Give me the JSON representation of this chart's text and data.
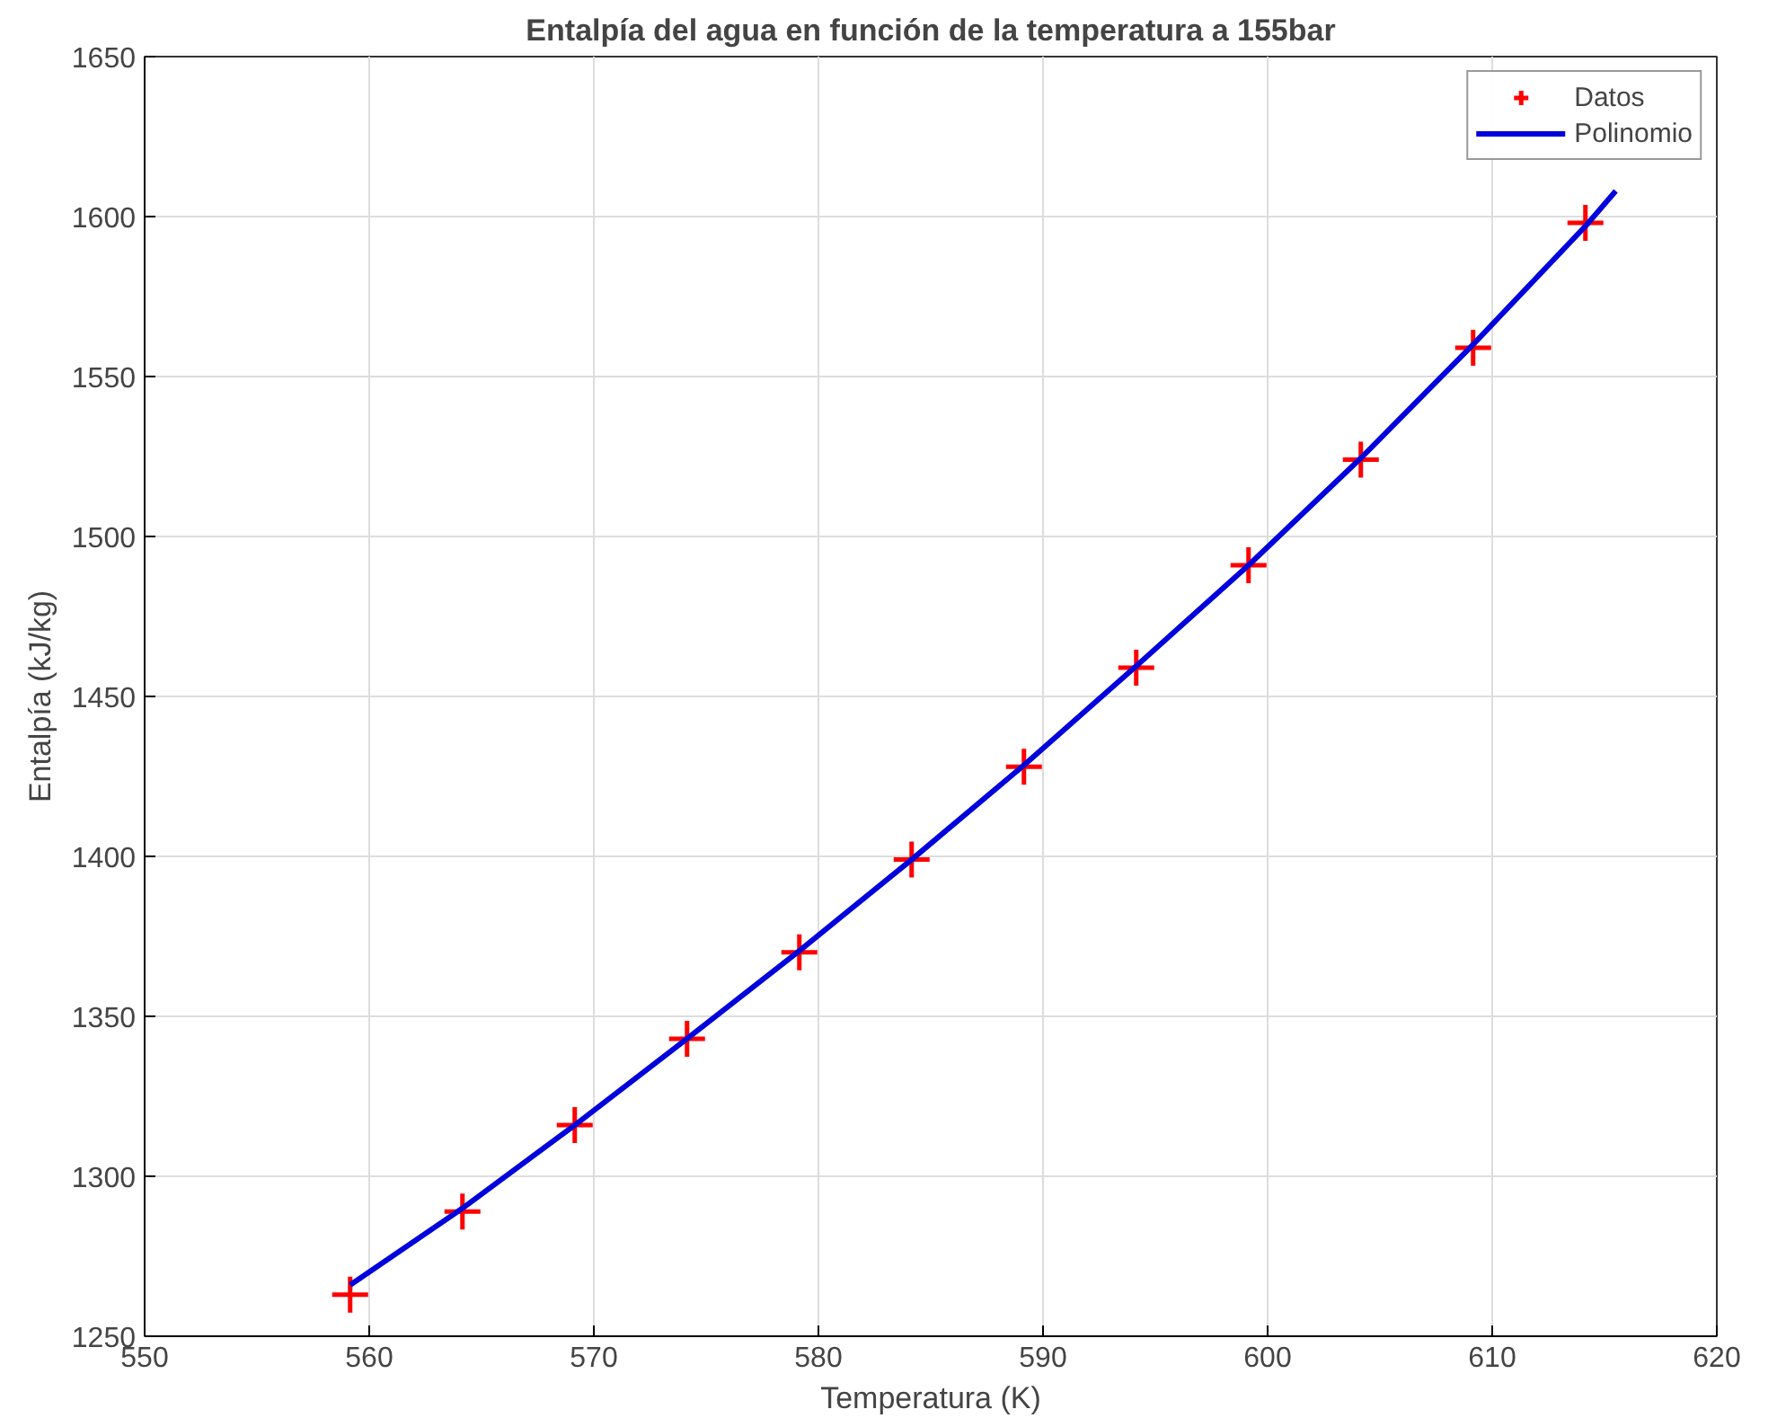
{
  "chart_data": {
    "type": "scatter",
    "title": "Entalpía del agua en función de la temperatura a 155bar",
    "xlabel": "Temperatura (K)",
    "ylabel": "Entalpía (kJ/kg)",
    "x": [
      559.15,
      564.15,
      569.15,
      574.15,
      579.15,
      584.15,
      589.15,
      594.15,
      599.15,
      604.15,
      609.15,
      614.15
    ],
    "series": [
      {
        "name": "Datos",
        "marker": "cross",
        "color": "#ff0000",
        "values": [
          1263,
          1289,
          1316,
          1343,
          1370,
          1399,
          1428,
          1459,
          1491,
          1524,
          1559,
          1598
        ]
      },
      {
        "name": "Polinomio",
        "type": "line",
        "color": "#0000dd",
        "x": [
          559.15,
          564.15,
          569.15,
          574.15,
          579.15,
          584.15,
          589.15,
          594.15,
          599.15,
          604.15,
          609.15,
          614.15,
          615.5
        ],
        "values": [
          1266,
          1290,
          1316,
          1343,
          1370.5,
          1399,
          1428.5,
          1459.5,
          1491,
          1524.5,
          1560,
          1597,
          1608
        ]
      }
    ],
    "xlim": [
      550,
      620
    ],
    "ylim": [
      1250,
      1650
    ],
    "xticks": [
      550,
      560,
      570,
      580,
      590,
      600,
      610,
      620
    ],
    "yticks": [
      1250,
      1300,
      1350,
      1400,
      1450,
      1500,
      1550,
      1600,
      1650
    ],
    "grid": true,
    "legend": "top right"
  }
}
